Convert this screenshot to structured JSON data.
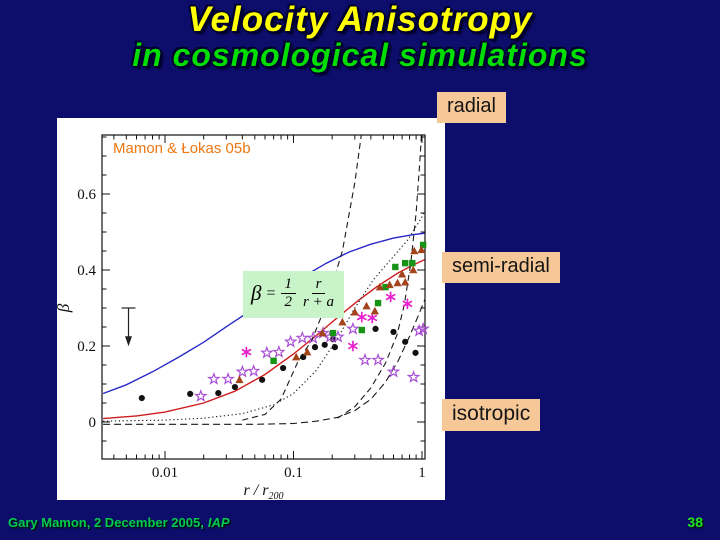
{
  "slide": {
    "title_line1": "Velocity Anisotropy",
    "title_line2": "in cosmological simulations",
    "region_labels": {
      "radial": "radial",
      "semi_radial": "semi-radial",
      "isotropic": "isotropic"
    },
    "footer": {
      "author_date": "Gary Mamon, 2 December 2005,",
      "venue": "IAP",
      "page": "38"
    },
    "colors": {
      "background": "#0d0d6b",
      "title_yellow": "#ffff00",
      "subtitle_green": "#00dd00",
      "label_box_peach": "#f6c897",
      "footer_green": "#00cb4e",
      "credit_orange": "#ee7711",
      "formula_box_green": "#c9f3c9"
    }
  },
  "chart_data": {
    "type": "scatter",
    "annotation": "Mamon & Łokas 05b",
    "formula": {
      "beta": "β",
      "equals": "=",
      "one": "1",
      "two": "2",
      "r": "r",
      "r_plus_a": "r + a"
    },
    "axes": {
      "x_scale": "log",
      "xlim": [
        0.0033,
        1.055
      ],
      "ylim": [
        -0.097,
        0.755
      ],
      "x_ticks": [
        0.01,
        0.1,
        1
      ],
      "x_tick_labels": [
        "0.01",
        "0.1",
        "1"
      ],
      "y_ticks": [
        0,
        0.2,
        0.4,
        0.6
      ],
      "y_tick_labels": [
        "0",
        "0.2",
        "0.4",
        "0.6"
      ],
      "y_minor_step": 0.05,
      "xlabel_main": "r / r",
      "xlabel_sub": "200",
      "ylabel": "β",
      "grid": false,
      "legend": "none"
    },
    "arrow_annotation": {
      "x": 0.0052,
      "beta_from": 0.3,
      "beta_to": 0.215,
      "meaning": "upper-limit down arrow"
    },
    "curves": [
      {
        "name": "blue-model-solid",
        "color": "#2929c8",
        "width": 1.4,
        "dash": null,
        "points": [
          [
            0.0033,
            0.075
          ],
          [
            0.005,
            0.098
          ],
          [
            0.008,
            0.132
          ],
          [
            0.013,
            0.172
          ],
          [
            0.02,
            0.21
          ],
          [
            0.032,
            0.257
          ],
          [
            0.05,
            0.3
          ],
          [
            0.08,
            0.345
          ],
          [
            0.12,
            0.383
          ],
          [
            0.18,
            0.418
          ],
          [
            0.27,
            0.447
          ],
          [
            0.4,
            0.468
          ],
          [
            0.6,
            0.484
          ],
          [
            0.85,
            0.493
          ],
          [
            1.06,
            0.497
          ]
        ]
      },
      {
        "name": "red-fit-solid",
        "color": "#cf1d1d",
        "width": 1.4,
        "dash": null,
        "points": [
          [
            0.0033,
            0.009
          ],
          [
            0.006,
            0.016
          ],
          [
            0.01,
            0.026
          ],
          [
            0.02,
            0.05
          ],
          [
            0.035,
            0.081
          ],
          [
            0.06,
            0.125
          ],
          [
            0.1,
            0.179
          ],
          [
            0.15,
            0.227
          ],
          [
            0.22,
            0.275
          ],
          [
            0.32,
            0.32
          ],
          [
            0.45,
            0.357
          ],
          [
            0.65,
            0.392
          ],
          [
            0.85,
            0.413
          ],
          [
            1.06,
            0.428
          ]
        ]
      },
      {
        "name": "dashed-steep",
        "color": "#1a1a1a",
        "width": 1.1,
        "dash": "6,4",
        "points": [
          [
            0.04,
            0.005
          ],
          [
            0.06,
            0.02
          ],
          [
            0.08,
            0.06
          ],
          [
            0.108,
            0.158
          ],
          [
            0.139,
            0.216
          ],
          [
            0.18,
            0.31
          ],
          [
            0.24,
            0.45
          ],
          [
            0.3,
            0.63
          ],
          [
            0.345,
            0.78
          ]
        ]
      },
      {
        "name": "dotted-model",
        "color": "#1a1a1a",
        "width": 1.1,
        "dash": "1.3,2.6",
        "points": [
          [
            0.0033,
            0.002
          ],
          [
            0.01,
            0.005
          ],
          [
            0.02,
            0.01
          ],
          [
            0.04,
            0.022
          ],
          [
            0.07,
            0.045
          ],
          [
            0.1,
            0.075
          ],
          [
            0.15,
            0.135
          ],
          [
            0.22,
            0.22
          ],
          [
            0.3,
            0.3
          ],
          [
            0.42,
            0.375
          ],
          [
            0.58,
            0.43
          ],
          [
            0.78,
            0.48
          ],
          [
            1.0,
            0.54
          ],
          [
            1.06,
            0.56
          ]
        ]
      },
      {
        "name": "dashed-late-steep",
        "color": "#1a1a1a",
        "width": 1.1,
        "dash": "6,4",
        "points": [
          [
            0.22,
            0.01
          ],
          [
            0.3,
            0.04
          ],
          [
            0.4,
            0.09
          ],
          [
            0.52,
            0.155
          ],
          [
            0.64,
            0.23
          ],
          [
            0.73,
            0.31
          ],
          [
            0.82,
            0.42
          ],
          [
            0.9,
            0.55
          ],
          [
            0.96,
            0.68
          ],
          [
            1.0,
            0.78
          ]
        ]
      },
      {
        "name": "dashed-shallow",
        "color": "#1a1a1a",
        "width": 1.1,
        "dash": "7,4",
        "points": [
          [
            0.0033,
            -0.006
          ],
          [
            0.05,
            -0.006
          ],
          [
            0.1,
            -0.004
          ],
          [
            0.15,
            0.002
          ],
          [
            0.22,
            0.012
          ],
          [
            0.3,
            0.03
          ],
          [
            0.4,
            0.06
          ],
          [
            0.52,
            0.105
          ],
          [
            0.65,
            0.16
          ],
          [
            0.8,
            0.225
          ],
          [
            0.95,
            0.285
          ],
          [
            1.06,
            0.325
          ]
        ]
      }
    ],
    "scatter": [
      {
        "name": "black-circles",
        "marker": "circle",
        "color": "#111111",
        "points": [
          [
            0.0066,
            0.063
          ],
          [
            0.0157,
            0.074
          ],
          [
            0.026,
            0.076
          ],
          [
            0.035,
            0.092
          ],
          [
            0.057,
            0.111
          ],
          [
            0.083,
            0.142
          ],
          [
            0.119,
            0.171
          ],
          [
            0.147,
            0.197
          ],
          [
            0.175,
            0.203
          ],
          [
            0.203,
            0.218
          ],
          [
            0.21,
            0.197
          ],
          [
            0.435,
            0.245
          ],
          [
            0.6,
            0.237
          ],
          [
            0.74,
            0.211
          ],
          [
            0.89,
            0.182
          ]
        ]
      },
      {
        "name": "violet-open-stars",
        "marker": "star-open",
        "color": "#a94fd4",
        "points": [
          [
            0.019,
            0.068
          ],
          [
            0.024,
            0.113
          ],
          [
            0.031,
            0.113
          ],
          [
            0.04,
            0.132
          ],
          [
            0.049,
            0.134
          ],
          [
            0.062,
            0.182
          ],
          [
            0.077,
            0.184
          ],
          [
            0.095,
            0.211
          ],
          [
            0.117,
            0.221
          ],
          [
            0.142,
            0.221
          ],
          [
            0.17,
            0.234
          ],
          [
            0.193,
            0.224
          ],
          [
            0.222,
            0.224
          ],
          [
            0.29,
            0.245
          ],
          [
            0.36,
            0.163
          ],
          [
            0.455,
            0.163
          ],
          [
            0.6,
            0.132
          ],
          [
            0.86,
            0.118
          ],
          [
            0.95,
            0.24
          ],
          [
            1.02,
            0.245
          ]
        ]
      },
      {
        "name": "magenta-asterisks",
        "marker": "asterisk",
        "color": "#e620ce",
        "points": [
          [
            0.043,
            0.184
          ],
          [
            0.29,
            0.2
          ],
          [
            0.34,
            0.276
          ],
          [
            0.41,
            0.274
          ],
          [
            0.57,
            0.329
          ],
          [
            0.77,
            0.311
          ]
        ]
      },
      {
        "name": "green-squares",
        "marker": "square",
        "color": "#169416",
        "points": [
          [
            0.07,
            0.161
          ],
          [
            0.203,
            0.234
          ],
          [
            0.34,
            0.242
          ],
          [
            0.455,
            0.313
          ],
          [
            0.52,
            0.355
          ],
          [
            0.62,
            0.408
          ],
          [
            0.74,
            0.418
          ],
          [
            0.84,
            0.418
          ],
          [
            1.02,
            0.466
          ]
        ]
      },
      {
        "name": "brown-triangles",
        "marker": "triangle",
        "color": "#a3441d",
        "points": [
          [
            0.038,
            0.111
          ],
          [
            0.105,
            0.171
          ],
          [
            0.128,
            0.184
          ],
          [
            0.168,
            0.234
          ],
          [
            0.24,
            0.263
          ],
          [
            0.3,
            0.289
          ],
          [
            0.37,
            0.305
          ],
          [
            0.43,
            0.292
          ],
          [
            0.47,
            0.355
          ],
          [
            0.56,
            0.361
          ],
          [
            0.645,
            0.366
          ],
          [
            0.7,
            0.389
          ],
          [
            0.74,
            0.368
          ],
          [
            0.855,
            0.4
          ],
          [
            0.87,
            0.45
          ],
          [
            0.99,
            0.453
          ]
        ]
      }
    ]
  }
}
